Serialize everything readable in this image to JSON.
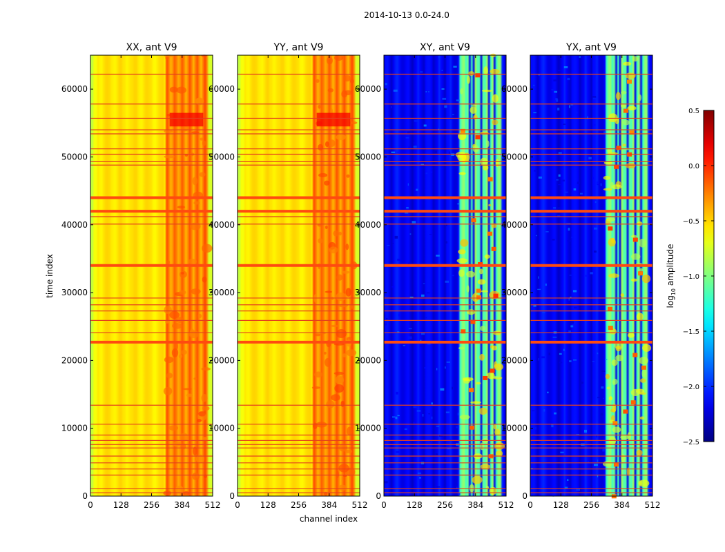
{
  "figure_title": "2014-10-13 0.0-24.0",
  "chart_data": {
    "type": "heatmap",
    "suptitle": "2014-10-13 0.0-24.0",
    "xlabel": "channel index",
    "ylabel": "time index",
    "xlim": [
      0,
      512
    ],
    "ylim": [
      0,
      65000
    ],
    "xticks": [
      0,
      128,
      256,
      384,
      512
    ],
    "yticks": [
      0,
      10000,
      20000,
      30000,
      40000,
      50000,
      60000
    ],
    "panels": [
      {
        "title": "XX, ant V9",
        "kind": "auto"
      },
      {
        "title": "YY, ant V9",
        "kind": "auto"
      },
      {
        "title": "XY, ant V9",
        "kind": "cross"
      },
      {
        "title": "YX, ant V9",
        "kind": "cross"
      }
    ],
    "colorbar": {
      "label_main": "log",
      "label_sub": "10",
      "label_rest": " amplitude",
      "vmin": -2.5,
      "vmax": 0.5,
      "ticks": [
        0.5,
        0.0,
        -0.5,
        -1.0,
        -1.5,
        -2.0,
        -2.5
      ],
      "colormap": "jet"
    },
    "flagged_rows_thick": [
      44000,
      42000,
      34000,
      22700
    ],
    "flagged_rows_thin": [
      62200,
      57800,
      55700,
      54000,
      53400,
      51200,
      50400,
      49300,
      48800,
      41200,
      40100,
      29200,
      28200,
      27300,
      25900,
      24100,
      13400,
      10600,
      9000,
      8200,
      7600,
      7100,
      5900,
      4900,
      4000,
      3100,
      1100,
      500
    ],
    "bright_band_channels": [
      320,
      490
    ]
  }
}
